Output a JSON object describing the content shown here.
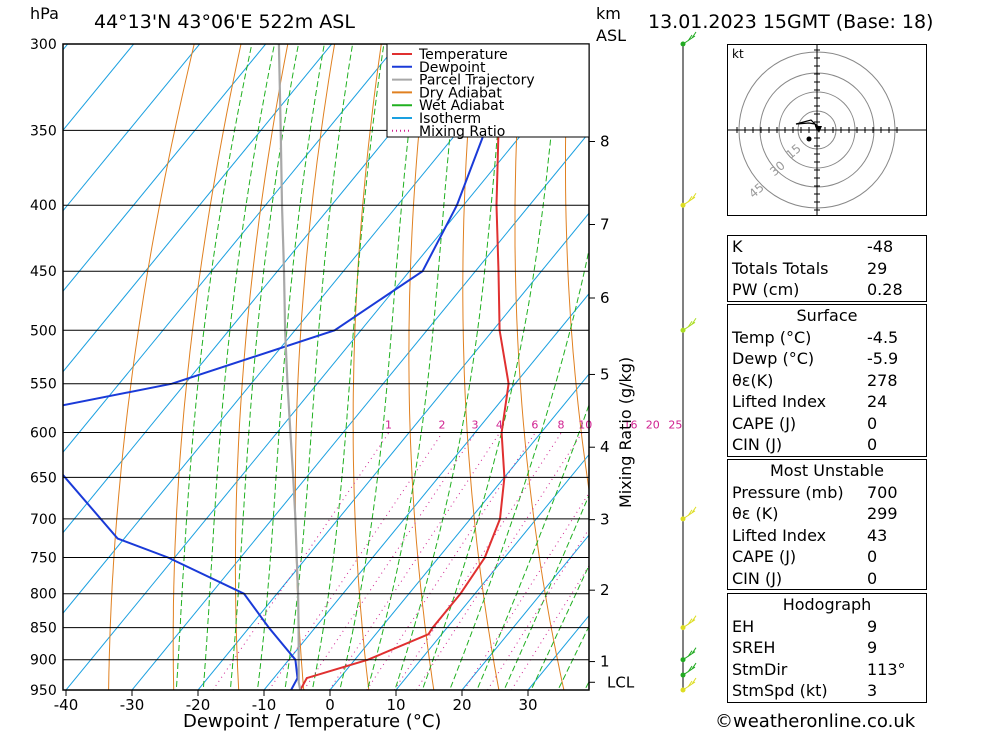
{
  "header": {
    "left_unit": "hPa",
    "location": "44°13'N  43°06'E  522m  ASL",
    "km_label": "km",
    "asl_label": "ASL",
    "datetime": "13.01.2023  15GMT  (Base: 18)"
  },
  "chart_data": {
    "type": "line",
    "xlabel": "Dewpoint / Temperature (°C)",
    "ylabel": "hPa",
    "xlim": [
      -40,
      40
    ],
    "ylim": [
      950,
      300
    ],
    "x_ticks": [
      -40,
      -30,
      -20,
      -10,
      0,
      10,
      20,
      30
    ],
    "pressure_ticks": [
      300,
      350,
      400,
      450,
      500,
      550,
      600,
      650,
      700,
      750,
      800,
      850,
      900,
      950
    ],
    "km_ticks": [
      {
        "label": "8",
        "p": 357
      },
      {
        "label": "7",
        "p": 414
      },
      {
        "label": "6",
        "p": 472
      },
      {
        "label": "5",
        "p": 541
      },
      {
        "label": "4",
        "p": 616
      },
      {
        "label": "3",
        "p": 701
      },
      {
        "label": "2",
        "p": 795
      },
      {
        "label": "1",
        "p": 903
      },
      {
        "label": "LCL",
        "p": 937
      }
    ],
    "mixing_ratio_axis": "Mixing Ratio (g/kg)",
    "mixing_ratio_labels": [
      "1",
      "2",
      "3",
      "4",
      "6",
      "8",
      "10",
      "16",
      "20",
      "25"
    ],
    "mixing_ratio_values": [
      1,
      2,
      3,
      4,
      6,
      8,
      10,
      16,
      20,
      25
    ],
    "legend": [
      "Temperature",
      "Dewpoint",
      "Parcel Trajectory",
      "Dry Adiabat",
      "Wet Adiabat",
      "Isotherm",
      "Mixing Ratio"
    ],
    "series": [
      {
        "name": "Temperature",
        "color": "#e03030",
        "points": [
          [
            950,
            -4.5
          ],
          [
            930,
            -5.0
          ],
          [
            900,
            2.0
          ],
          [
            860,
            8.0
          ],
          [
            850,
            7.8
          ],
          [
            800,
            7.8
          ],
          [
            750,
            7.0
          ],
          [
            700,
            4.5
          ],
          [
            650,
            0.0
          ],
          [
            600,
            -6.0
          ],
          [
            550,
            -11.0
          ],
          [
            500,
            -19.0
          ],
          [
            450,
            -26.5
          ],
          [
            400,
            -35.0
          ],
          [
            350,
            -44.0
          ],
          [
            300,
            -54.0
          ]
        ]
      },
      {
        "name": "Dewpoint",
        "color": "#1a3ad8",
        "points": [
          [
            950,
            -5.9
          ],
          [
            930,
            -6.4
          ],
          [
            900,
            -9.0
          ],
          [
            850,
            -17.0
          ],
          [
            800,
            -25.0
          ],
          [
            750,
            -41.0
          ],
          [
            725,
            -51.0
          ],
          [
            600,
            -78.0
          ],
          [
            575,
            -78.0
          ],
          [
            550,
            -62.0
          ],
          [
            500,
            -44.0
          ],
          [
            450,
            -38.0
          ],
          [
            400,
            -41.0
          ],
          [
            350,
            -46.0
          ],
          [
            300,
            -52.0
          ]
        ]
      },
      {
        "name": "Parcel Trajectory",
        "color": "#a8a8a8",
        "points": [
          [
            950,
            -4.5
          ],
          [
            937,
            -5.7
          ],
          [
            900,
            -8.5
          ],
          [
            850,
            -12.5
          ],
          [
            800,
            -16.8
          ],
          [
            750,
            -21.5
          ],
          [
            700,
            -26.5
          ],
          [
            650,
            -32.0
          ],
          [
            600,
            -38.0
          ],
          [
            550,
            -44.5
          ],
          [
            500,
            -51.5
          ],
          [
            450,
            -59.0
          ],
          [
            400,
            -67.5
          ],
          [
            350,
            -77.0
          ],
          [
            300,
            -88.0
          ]
        ]
      }
    ]
  },
  "indices_block": {
    "rows": [
      {
        "label": "K",
        "value": "-48"
      },
      {
        "label": "Totals Totals",
        "value": "29"
      },
      {
        "label": "PW (cm)",
        "value": "0.28"
      }
    ]
  },
  "surface_block": {
    "title": "Surface",
    "rows": [
      {
        "label": "Temp (°C)",
        "value": "-4.5"
      },
      {
        "label": "Dewp (°C)",
        "value": "-5.9"
      },
      {
        "label": "θε(K)",
        "value": "278"
      },
      {
        "label": "Lifted Index",
        "value": "24"
      },
      {
        "label": "CAPE (J)",
        "value": "0"
      },
      {
        "label": "CIN (J)",
        "value": "0"
      }
    ]
  },
  "most_unstable_block": {
    "title": "Most Unstable",
    "rows": [
      {
        "label": "Pressure (mb)",
        "value": "700"
      },
      {
        "label": "θε (K)",
        "value": "299"
      },
      {
        "label": "Lifted Index",
        "value": "43"
      },
      {
        "label": "CAPE (J)",
        "value": "0"
      },
      {
        "label": "CIN (J)",
        "value": "0"
      }
    ]
  },
  "hodograph_block": {
    "title": "Hodograph",
    "rows": [
      {
        "label": "EH",
        "value": "9"
      },
      {
        "label": "SREH",
        "value": "9"
      },
      {
        "label": "StmDir",
        "value": "113°"
      },
      {
        "label": "StmSpd (kt)",
        "value": "3"
      }
    ]
  },
  "hodograph_plot": {
    "unit_label": "kt",
    "ring_labels": [
      "15",
      "30",
      "45"
    ]
  },
  "wind_barbs": {
    "levels": [
      300,
      400,
      500,
      700,
      850,
      900,
      925,
      950
    ],
    "colors": [
      "#22aa22",
      "#dddd22",
      "#aadd22",
      "#dddd22",
      "#dddd22",
      "#22aa22",
      "#22aa22",
      "#dddd22"
    ]
  },
  "credit": "©weatheronline.co.uk"
}
